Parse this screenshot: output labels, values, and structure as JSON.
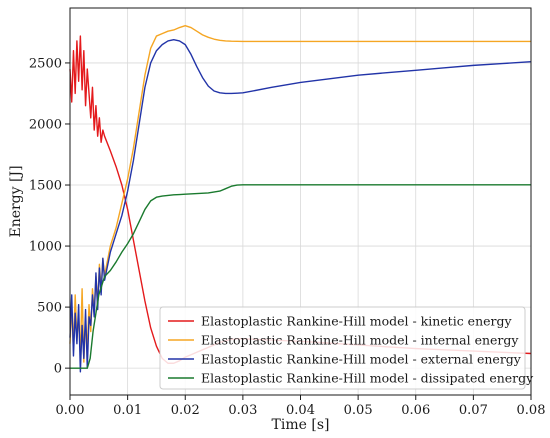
{
  "chart_data": {
    "type": "line",
    "title": "",
    "xlabel": "Time [s]",
    "ylabel": "Energy [J]",
    "xlim": [
      0.0,
      0.08
    ],
    "ylim": [
      -220,
      2950
    ],
    "xticks": [
      0.0,
      0.01,
      0.02,
      0.03,
      0.04,
      0.05,
      0.06,
      0.07,
      0.08
    ],
    "xtick_labels": [
      "0.00",
      "0.01",
      "0.02",
      "0.03",
      "0.04",
      "0.05",
      "0.06",
      "0.07",
      "0.08"
    ],
    "yticks": [
      0,
      500,
      1000,
      1500,
      2000,
      2500
    ],
    "ytick_labels": [
      "0",
      "500",
      "1000",
      "1500",
      "2000",
      "2500"
    ],
    "grid": true,
    "legend_position": "bottom-right",
    "series": [
      {
        "name": "Elastoplastic Rankine-Hill model - kinetic energy",
        "color": "#e41a1c",
        "x": [
          0.0,
          0.0003,
          0.0006,
          0.0009,
          0.0012,
          0.0015,
          0.0018,
          0.0021,
          0.0024,
          0.0027,
          0.003,
          0.0033,
          0.0036,
          0.0039,
          0.0042,
          0.0045,
          0.0048,
          0.0051,
          0.0054,
          0.0057,
          0.006,
          0.007,
          0.008,
          0.009,
          0.01,
          0.011,
          0.012,
          0.013,
          0.014,
          0.015,
          0.016,
          0.017,
          0.018,
          0.019,
          0.02,
          0.021,
          0.022,
          0.023,
          0.024,
          0.025,
          0.026,
          0.027,
          0.028,
          0.029,
          0.03,
          0.035,
          0.04,
          0.045,
          0.05,
          0.055,
          0.06,
          0.065,
          0.07,
          0.075,
          0.08
        ],
        "y": [
          2450,
          2180,
          2600,
          2250,
          2680,
          2350,
          2720,
          2280,
          2600,
          2150,
          2450,
          2250,
          2050,
          2300,
          1950,
          2150,
          1900,
          2050,
          1850,
          1950,
          1900,
          1780,
          1650,
          1500,
          1300,
          1050,
          800,
          550,
          330,
          180,
          80,
          40,
          40,
          60,
          90,
          110,
          130,
          150,
          170,
          190,
          210,
          225,
          235,
          240,
          240,
          230,
          220,
          205,
          190,
          175,
          160,
          150,
          140,
          130,
          120
        ]
      },
      {
        "name": "Elastoplastic Rankine-Hill model - internal energy",
        "color": "#f5a623",
        "x": [
          0.0,
          0.0003,
          0.0006,
          0.0009,
          0.0012,
          0.0015,
          0.0018,
          0.0021,
          0.0024,
          0.0027,
          0.003,
          0.0033,
          0.0036,
          0.0039,
          0.0042,
          0.0045,
          0.0048,
          0.0051,
          0.0054,
          0.0057,
          0.006,
          0.007,
          0.008,
          0.009,
          0.01,
          0.011,
          0.012,
          0.013,
          0.014,
          0.015,
          0.016,
          0.017,
          0.018,
          0.019,
          0.02,
          0.021,
          0.022,
          0.023,
          0.024,
          0.025,
          0.026,
          0.027,
          0.028,
          0.029,
          0.03,
          0.035,
          0.04,
          0.045,
          0.05,
          0.055,
          0.06,
          0.065,
          0.07,
          0.075,
          0.08
        ],
        "y": [
          200,
          500,
          150,
          600,
          250,
          420,
          100,
          650,
          50,
          400,
          150,
          520,
          300,
          650,
          450,
          750,
          520,
          850,
          650,
          900,
          760,
          1000,
          1150,
          1350,
          1550,
          1800,
          2100,
          2400,
          2620,
          2720,
          2740,
          2760,
          2770,
          2790,
          2805,
          2790,
          2760,
          2730,
          2710,
          2695,
          2685,
          2680,
          2678,
          2677,
          2676,
          2676,
          2676,
          2676,
          2676,
          2676,
          2676,
          2676,
          2676,
          2676,
          2676
        ]
      },
      {
        "name": "Elastoplastic Rankine-Hill model - external energy",
        "color": "#2234a8",
        "x": [
          0.0,
          0.0003,
          0.0006,
          0.0009,
          0.0012,
          0.0015,
          0.0018,
          0.0021,
          0.0024,
          0.0027,
          0.003,
          0.0033,
          0.0036,
          0.0039,
          0.0042,
          0.0045,
          0.0048,
          0.0051,
          0.0054,
          0.0057,
          0.006,
          0.007,
          0.008,
          0.009,
          0.01,
          0.011,
          0.012,
          0.013,
          0.014,
          0.015,
          0.016,
          0.017,
          0.018,
          0.019,
          0.02,
          0.021,
          0.022,
          0.023,
          0.024,
          0.025,
          0.026,
          0.027,
          0.028,
          0.029,
          0.03,
          0.035,
          0.04,
          0.045,
          0.05,
          0.055,
          0.06,
          0.065,
          0.07,
          0.075,
          0.08
        ],
        "y": [
          250,
          600,
          100,
          450,
          200,
          520,
          -30,
          350,
          80,
          480,
          0,
          420,
          350,
          600,
          420,
          780,
          480,
          820,
          600,
          900,
          720,
          950,
          1100,
          1250,
          1450,
          1700,
          2000,
          2300,
          2500,
          2600,
          2650,
          2680,
          2690,
          2680,
          2650,
          2570,
          2470,
          2380,
          2310,
          2270,
          2255,
          2250,
          2250,
          2252,
          2255,
          2300,
          2340,
          2370,
          2400,
          2420,
          2440,
          2460,
          2480,
          2495,
          2510
        ]
      },
      {
        "name": "Elastoplastic Rankine-Hill model - dissipated energy",
        "color": "#1a7a2e",
        "x": [
          0.0,
          0.001,
          0.002,
          0.0025,
          0.003,
          0.0035,
          0.004,
          0.005,
          0.006,
          0.007,
          0.008,
          0.009,
          0.01,
          0.011,
          0.012,
          0.013,
          0.014,
          0.015,
          0.016,
          0.017,
          0.018,
          0.019,
          0.02,
          0.022,
          0.024,
          0.026,
          0.027,
          0.028,
          0.029,
          0.03,
          0.035,
          0.04,
          0.045,
          0.05,
          0.055,
          0.06,
          0.065,
          0.07,
          0.075,
          0.08
        ],
        "y": [
          0,
          0,
          0,
          0,
          0,
          80,
          300,
          600,
          750,
          800,
          870,
          950,
          1020,
          1100,
          1200,
          1300,
          1370,
          1400,
          1410,
          1415,
          1420,
          1422,
          1425,
          1430,
          1435,
          1450,
          1470,
          1490,
          1500,
          1502,
          1502,
          1502,
          1502,
          1502,
          1502,
          1502,
          1502,
          1502,
          1502,
          1502
        ]
      }
    ]
  }
}
